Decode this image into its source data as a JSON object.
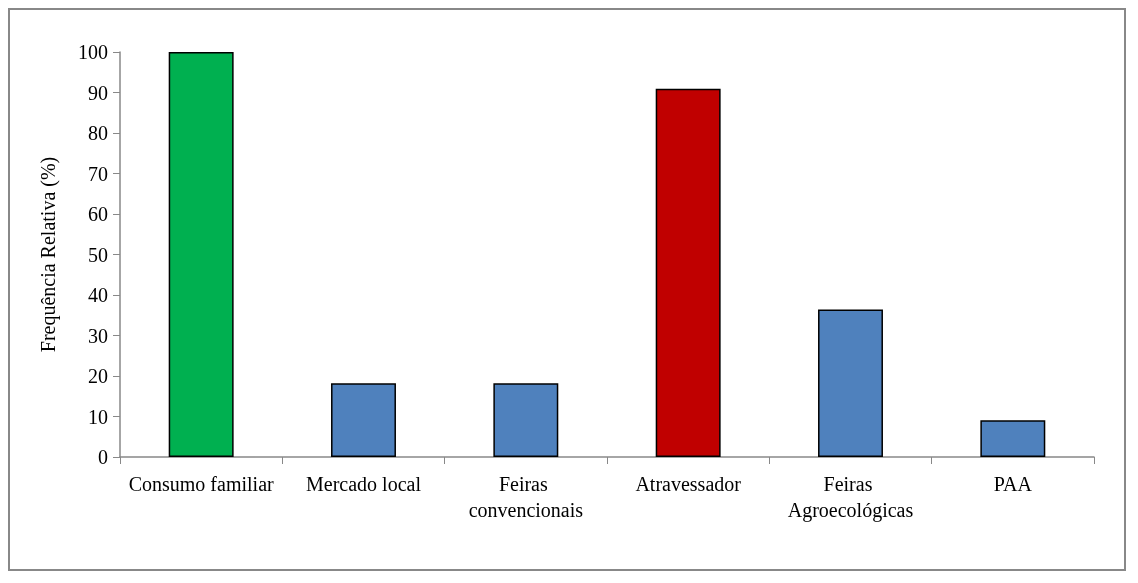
{
  "chart_data": {
    "type": "bar",
    "ylabel": "Frequência Relativa (%)",
    "categories": [
      "Consumo familiar",
      "Mercado local",
      "Feiras convencionais",
      "Atravessador",
      "Feiras Agroecológicas",
      "PAA"
    ],
    "values": [
      100,
      18.2,
      18.2,
      90.9,
      36.4,
      9.1
    ],
    "colors": [
      "#00b050",
      "#4f81bd",
      "#4f81bd",
      "#c00000",
      "#4f81bd",
      "#4f81bd"
    ],
    "ylim": [
      0,
      100
    ],
    "yticks": [
      0,
      10,
      20,
      30,
      40,
      50,
      60,
      70,
      80,
      90,
      100
    ],
    "grid": false
  }
}
